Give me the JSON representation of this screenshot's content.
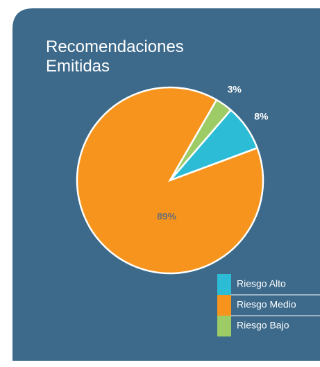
{
  "chart_data": {
    "type": "pie",
    "title": "Recomendaciones Emitidas",
    "categories": [
      "Riesgo Alto",
      "Riesgo Medio",
      "Riesgo Bajo"
    ],
    "values": [
      8,
      89,
      3
    ],
    "value_labels": [
      "8%",
      "89%",
      "3%"
    ],
    "colors": [
      "#2cbcd6",
      "#f7941d",
      "#9dcc67"
    ]
  }
}
